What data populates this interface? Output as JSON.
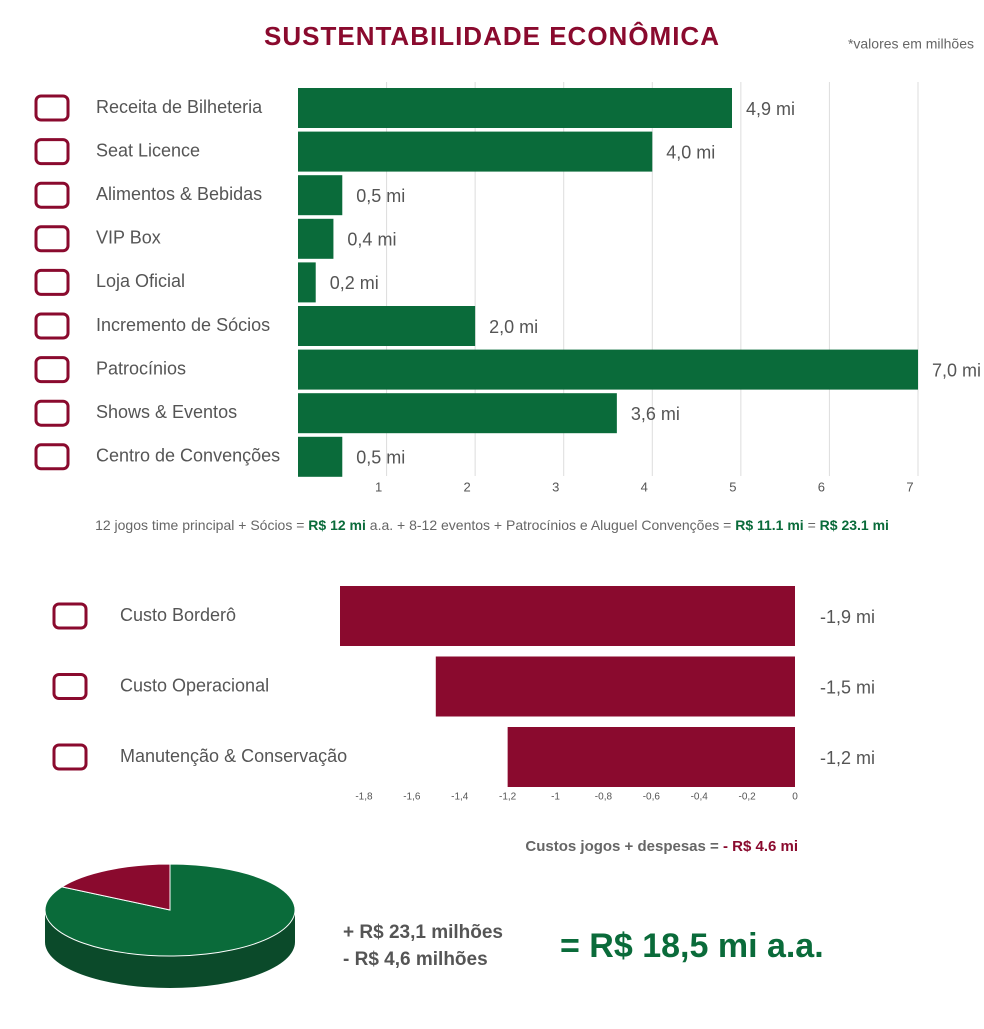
{
  "title": "SUSTENTABILIDADE ECONÔMICA",
  "note": "*valores em milhões",
  "summary": [
    "12 jogos time principal + Sócios = ",
    "R$ 12 mi",
    " a.a. +  8-12 eventos + Patrocínios e Aluguel Convenções = ",
    "R$ 11.1 mi",
    " = ",
    "R$ 23.1 mi"
  ],
  "costs_total": [
    "Custos jogos + despesas = ",
    "- R$ 4.6 mi"
  ],
  "result": "=  R$ 18,5 mi a.a.",
  "chart_data": [
    {
      "type": "barh",
      "categories": [
        "Receita de Bilheteria",
        "Seat Licence",
        "Alimentos & Bebidas",
        "VIP Box",
        "Loja Oficial",
        "Incremento de Sócios",
        "Patrocínios",
        "Shows & Eventos",
        "Centro de Convenções"
      ],
      "values": [
        4.9,
        4.0,
        0.5,
        0.4,
        0.2,
        2.0,
        7.0,
        3.6,
        0.5
      ],
      "value_labels": [
        "4,9 mi",
        "4,0 mi",
        "0,5 mi",
        "0,4 mi",
        "0,2 mi",
        "2,0 mi",
        "7,0 mi",
        "3,6 mi",
        "0,5 mi"
      ],
      "color": "#0a6b3a",
      "xlim": [
        0,
        7
      ],
      "xticks": [
        1,
        2,
        3,
        4,
        5,
        6,
        7
      ],
      "grid": true
    },
    {
      "type": "barh",
      "categories": [
        "Custo Borderô",
        "Custo Operacional",
        "Manutenção & Conservação"
      ],
      "values": [
        -1.9,
        -1.5,
        -1.2
      ],
      "value_labels": [
        "-1,9 mi",
        "-1,5 mi",
        "-1,2 mi"
      ],
      "color": "#8a0a2e",
      "xlim": [
        -1.9,
        0
      ],
      "xticks": [
        {
          "value": -1.8,
          "label": "-1,8"
        },
        {
          "value": -1.6,
          "label": "-1,6"
        },
        {
          "value": -1.4,
          "label": "-1,4"
        },
        {
          "value": -1.2,
          "label": "-1,2"
        },
        -1,
        {
          "value": -0.8,
          "label": "-0,8"
        },
        {
          "value": -0.6,
          "label": "-0,6"
        },
        {
          "value": -0.4,
          "label": "-0,4"
        },
        {
          "value": -0.2,
          "label": "-0,2"
        },
        0
      ],
      "grid": false
    },
    {
      "type": "pie",
      "values": [
        23.1,
        4.6
      ],
      "value_labels": [
        "+ R$ 23,1 milhões",
        "-  R$ 4,6 milhões"
      ],
      "colors": [
        "#0a6b3a",
        "#8a0a2e"
      ]
    }
  ]
}
